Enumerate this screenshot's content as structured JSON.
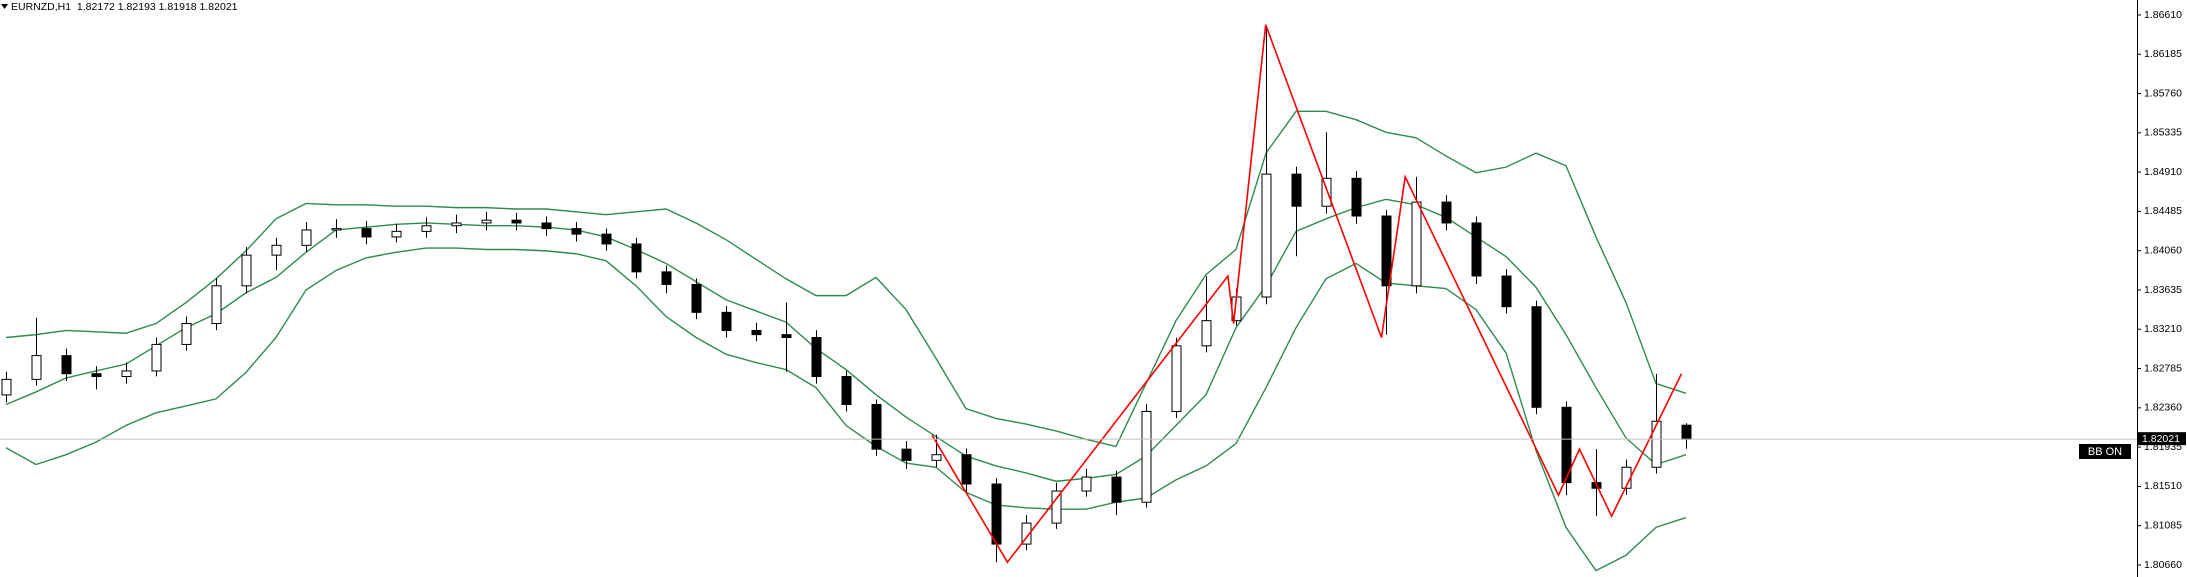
{
  "chart_data": {
    "type": "candlestick",
    "title": "EURNZD,H1  1.82172 1.82193 1.81918 1.82021",
    "indicator_label": "BB ON",
    "up_color": "#ffffff",
    "down_color": "#000000",
    "ylim": [
      1.8053,
      1.86772
    ],
    "yticks": [
      {
        "value": 1.8661,
        "label": "1.86610"
      },
      {
        "value": 1.86185,
        "label": "1.86185"
      },
      {
        "value": 1.8576,
        "label": "1.85760"
      },
      {
        "value": 1.85335,
        "label": "1.85335"
      },
      {
        "value": 1.8491,
        "label": "1.84910"
      },
      {
        "value": 1.84485,
        "label": "1.84485"
      },
      {
        "value": 1.8406,
        "label": "1.84060"
      },
      {
        "value": 1.83635,
        "label": "1.83635"
      },
      {
        "value": 1.8321,
        "label": "1.83210"
      },
      {
        "value": 1.82785,
        "label": "1.82785"
      },
      {
        "value": 1.8236,
        "label": "1.82360"
      },
      {
        "value": 1.81935,
        "label": "1.81935"
      },
      {
        "value": 1.8151,
        "label": "1.81510"
      },
      {
        "value": 1.81085,
        "label": "1.81085"
      },
      {
        "value": 1.8066,
        "label": "1.80660"
      }
    ],
    "current_price": {
      "value": 1.82021,
      "label": "1.82021"
    },
    "ohlc": {
      "open": [
        1.825,
        1.82668,
        1.82925,
        1.82729,
        1.82699,
        1.82759,
        1.83046,
        1.83272,
        1.8368,
        1.84012,
        1.84118,
        1.84284,
        1.84299,
        1.84209,
        1.84269,
        1.8433,
        1.8436,
        1.8439,
        1.8436,
        1.84299,
        1.84239,
        1.84133,
        1.83831,
        1.83695,
        1.83393,
        1.83197,
        1.83152,
        1.83121,
        1.82699,
        1.82396,
        1.81913,
        1.81792,
        1.81853,
        1.81536,
        1.80886,
        1.81113,
        1.8146,
        1.81611,
        1.81339,
        1.82321,
        1.83031,
        1.83303,
        1.83559,
        1.84888,
        1.84541,
        1.84843,
        1.84435,
        1.8368,
        1.84586,
        1.8436,
        1.83786,
        1.83454,
        1.82366,
        1.81551,
        1.8149,
        1.81717,
        1.82172
      ],
      "high": [
        1.8275,
        1.83333,
        1.83,
        1.8281,
        1.8285,
        1.8312,
        1.8335,
        1.8376,
        1.841,
        1.842,
        1.8437,
        1.844,
        1.8438,
        1.8435,
        1.8442,
        1.8445,
        1.8448,
        1.8447,
        1.8443,
        1.8437,
        1.843,
        1.842,
        1.839,
        1.8376,
        1.8346,
        1.8328,
        1.835,
        1.832,
        1.8276,
        1.8245,
        1.82,
        1.8207,
        1.8192,
        1.816,
        1.812,
        1.8155,
        1.817,
        1.8168,
        1.824,
        1.8312,
        1.83786,
        1.8365,
        1.86474,
        1.8497,
        1.85341,
        1.8492,
        1.845,
        1.84858,
        1.8466,
        1.8443,
        1.8386,
        1.8352,
        1.8243,
        1.81913,
        1.818,
        1.82729,
        1.82193
      ],
      "low": [
        1.8242,
        1.826,
        1.8265,
        1.8256,
        1.8262,
        1.827,
        1.8298,
        1.832,
        1.836,
        1.8385,
        1.8405,
        1.842,
        1.8413,
        1.8415,
        1.842,
        1.8425,
        1.8428,
        1.8428,
        1.8422,
        1.8416,
        1.8406,
        1.8376,
        1.836,
        1.8332,
        1.8312,
        1.8308,
        1.8275,
        1.8262,
        1.8232,
        1.8184,
        1.817,
        1.8172,
        1.8145,
        1.8069,
        1.8082,
        1.8105,
        1.814,
        1.812,
        1.8128,
        1.8225,
        1.8296,
        1.8325,
        1.8348,
        1.84,
        1.8446,
        1.8435,
        1.83152,
        1.836,
        1.8428,
        1.837,
        1.8338,
        1.8229,
        1.81415,
        1.81188,
        1.8142,
        1.8165,
        1.81918
      ],
      "close": [
        1.82668,
        1.82925,
        1.82729,
        1.82699,
        1.82759,
        1.83046,
        1.83272,
        1.8368,
        1.84012,
        1.84118,
        1.84284,
        1.84299,
        1.84209,
        1.84269,
        1.8433,
        1.8436,
        1.8439,
        1.8436,
        1.84299,
        1.84239,
        1.84133,
        1.83831,
        1.83695,
        1.83393,
        1.83197,
        1.83152,
        1.83121,
        1.82699,
        1.82396,
        1.81913,
        1.81792,
        1.81853,
        1.81536,
        1.80886,
        1.81113,
        1.8146,
        1.81611,
        1.81339,
        1.82321,
        1.83031,
        1.83303,
        1.83559,
        1.84888,
        1.84541,
        1.84843,
        1.84435,
        1.8368,
        1.84586,
        1.8436,
        1.83786,
        1.83454,
        1.82366,
        1.81551,
        1.8149,
        1.81717,
        1.82215,
        1.82021
      ]
    },
    "bands": [
      {
        "color": "#2e8b4e",
        "values": [
          1.83121,
          1.83152,
          1.83197,
          1.83182,
          1.83167,
          1.83272,
          1.83499,
          1.83756,
          1.84058,
          1.84405,
          1.84571,
          1.84556,
          1.84556,
          1.84541,
          1.84541,
          1.84526,
          1.84526,
          1.84511,
          1.84511,
          1.84481,
          1.8445,
          1.84481,
          1.84511,
          1.8436,
          1.84179,
          1.83967,
          1.83756,
          1.83574,
          1.83574,
          1.83771,
          1.83423,
          1.82895,
          1.82351,
          1.82245,
          1.82185,
          1.8211,
          1.82019,
          1.81943,
          1.82623,
          1.83303,
          1.83801,
          1.84073,
          1.85115,
          1.85568,
          1.85568,
          1.85477,
          1.85341,
          1.85281,
          1.85085,
          1.84903,
          1.84964,
          1.85115,
          1.84979,
          1.84209,
          1.83499,
          1.82623,
          1.82517
        ]
      },
      {
        "color": "#2e8b4e",
        "values": [
          1.82396,
          1.82532,
          1.82683,
          1.82759,
          1.82834,
          1.83031,
          1.83227,
          1.83378,
          1.83605,
          1.83771,
          1.84043,
          1.84284,
          1.84314,
          1.84345,
          1.8436,
          1.84345,
          1.8433,
          1.8433,
          1.84314,
          1.84284,
          1.84209,
          1.84073,
          1.83922,
          1.83725,
          1.83529,
          1.83408,
          1.83287,
          1.83001,
          1.82774,
          1.82502,
          1.8226,
          1.82049,
          1.81838,
          1.81732,
          1.81656,
          1.81566,
          1.81596,
          1.81641,
          1.81838,
          1.8217,
          1.82502,
          1.83227,
          1.8368,
          1.84269,
          1.84405,
          1.84526,
          1.84616,
          1.84556,
          1.8442,
          1.84209,
          1.83997,
          1.83665,
          1.83152,
          1.82578,
          1.82034,
          1.81747,
          1.81853
        ]
      },
      {
        "color": "#2e8b4e",
        "values": [
          1.81928,
          1.81747,
          1.81853,
          1.81989,
          1.8217,
          1.82306,
          1.82381,
          1.82457,
          1.82744,
          1.83121,
          1.83635,
          1.83846,
          1.83982,
          1.84043,
          1.84088,
          1.84088,
          1.84073,
          1.84073,
          1.84058,
          1.84027,
          1.83952,
          1.8368,
          1.83348,
          1.83121,
          1.8294,
          1.8285,
          1.82774,
          1.82578,
          1.8217,
          1.81943,
          1.81762,
          1.81717,
          1.81445,
          1.81309,
          1.81279,
          1.81264,
          1.81264,
          1.81339,
          1.81385,
          1.81581,
          1.81732,
          1.81974,
          1.82578,
          1.83227,
          1.83756,
          1.83922,
          1.8371,
          1.8368,
          1.8365,
          1.83423,
          1.82955,
          1.81898,
          1.81067,
          1.80599,
          1.80765,
          1.81067,
          1.81173
        ]
      }
    ],
    "zigzag": {
      "color": "#ff0000",
      "x": [
        30.87,
        33.38,
        40.73,
        40.92,
        41.99,
        45.85,
        46.64,
        51.75,
        52.45,
        53.52,
        55.85
      ],
      "values": [
        1.82064,
        1.8069,
        1.83786,
        1.83272,
        1.86504,
        1.83121,
        1.84858,
        1.81415,
        1.81913,
        1.81188,
        1.82729
      ]
    }
  }
}
